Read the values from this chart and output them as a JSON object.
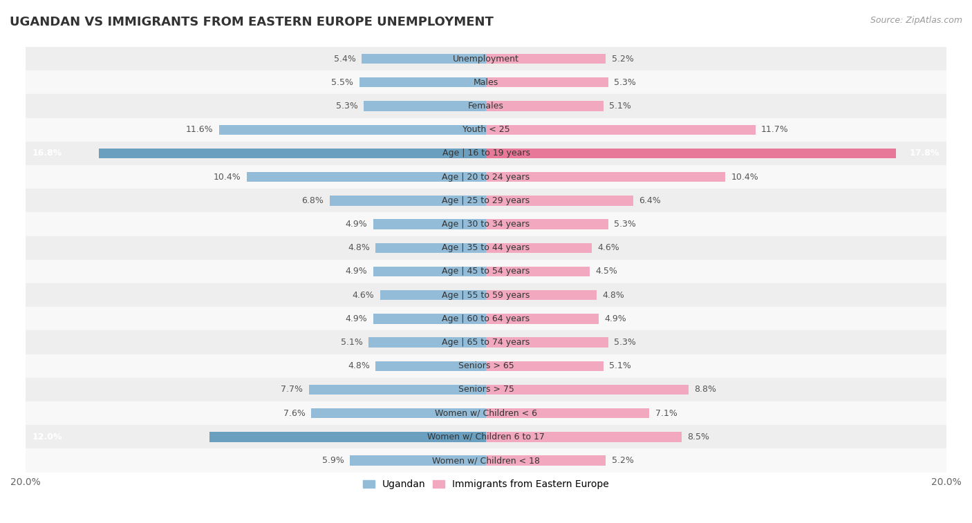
{
  "title": "UGANDAN VS IMMIGRANTS FROM EASTERN EUROPE UNEMPLOYMENT",
  "source": "Source: ZipAtlas.com",
  "categories": [
    "Unemployment",
    "Males",
    "Females",
    "Youth < 25",
    "Age | 16 to 19 years",
    "Age | 20 to 24 years",
    "Age | 25 to 29 years",
    "Age | 30 to 34 years",
    "Age | 35 to 44 years",
    "Age | 45 to 54 years",
    "Age | 55 to 59 years",
    "Age | 60 to 64 years",
    "Age | 65 to 74 years",
    "Seniors > 65",
    "Seniors > 75",
    "Women w/ Children < 6",
    "Women w/ Children 6 to 17",
    "Women w/ Children < 18"
  ],
  "ugandan": [
    5.4,
    5.5,
    5.3,
    11.6,
    16.8,
    10.4,
    6.8,
    4.9,
    4.8,
    4.9,
    4.6,
    4.9,
    5.1,
    4.8,
    7.7,
    7.6,
    12.0,
    5.9
  ],
  "eastern_europe": [
    5.2,
    5.3,
    5.1,
    11.7,
    17.8,
    10.4,
    6.4,
    5.3,
    4.6,
    4.5,
    4.8,
    4.9,
    5.3,
    5.1,
    8.8,
    7.1,
    8.5,
    5.2
  ],
  "ugandan_color": "#93bcd8",
  "eastern_europe_color": "#f2a8bf",
  "ugandan_highlight_indices": [
    4,
    16
  ],
  "eastern_europe_highlight_indices": [
    4
  ],
  "ugandan_highlight_color": "#6a9fc0",
  "eastern_europe_highlight_color": "#e87898",
  "bar_height": 0.42,
  "xlim": 20.0,
  "bg_color_stripe": "#eeeeee",
  "bg_color_plain": "#f8f8f8",
  "legend_ugandan": "Ugandan",
  "legend_eastern_europe": "Immigrants from Eastern Europe",
  "label_fontsize": 9.0,
  "cat_fontsize": 9.0,
  "title_fontsize": 13,
  "source_fontsize": 9
}
